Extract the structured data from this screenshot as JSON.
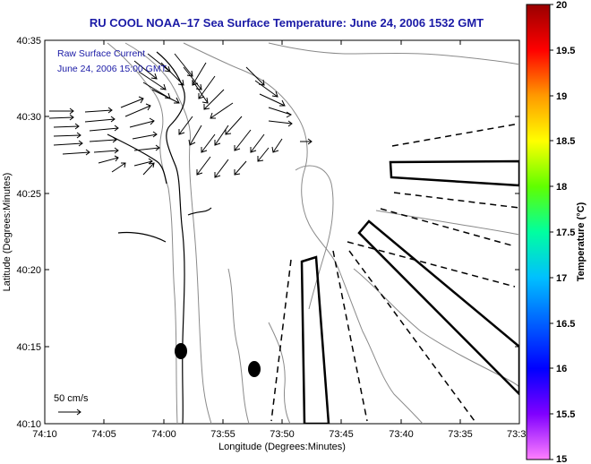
{
  "chart_data": {
    "type": "map",
    "title": "RU COOL   NOAA–17  Sea Surface Temperature:  June 24, 2006 1532 GMT",
    "xlabel": "Longitude (Degrees:Minutes)",
    "ylabel": "Latitude (Degrees:Minutes)",
    "x_tick_labels": [
      "74:10",
      "74:05",
      "74:00",
      "73:55",
      "73:50",
      "73:45",
      "73:40",
      "73:35",
      "73:3"
    ],
    "y_tick_labels": [
      "40:35",
      "40:30",
      "40:25",
      "40:20",
      "40:15",
      "40:10"
    ],
    "annotation_lines": [
      "Raw Surface Current",
      "June 24, 2006  15:00 GMT"
    ],
    "scale_label": "50 cm/s",
    "colorbar": {
      "label": "Temperature (°C)",
      "range": [
        15,
        20
      ],
      "tick_labels": [
        "20",
        "19.5",
        "19",
        "18.5",
        "18",
        "17.5",
        "17",
        "16.5",
        "16",
        "15.5",
        "15"
      ]
    }
  },
  "colors": {
    "title": "#1a1aa6",
    "annotation": "#1a1aa6",
    "contours": "#888888",
    "features": "#000000"
  }
}
